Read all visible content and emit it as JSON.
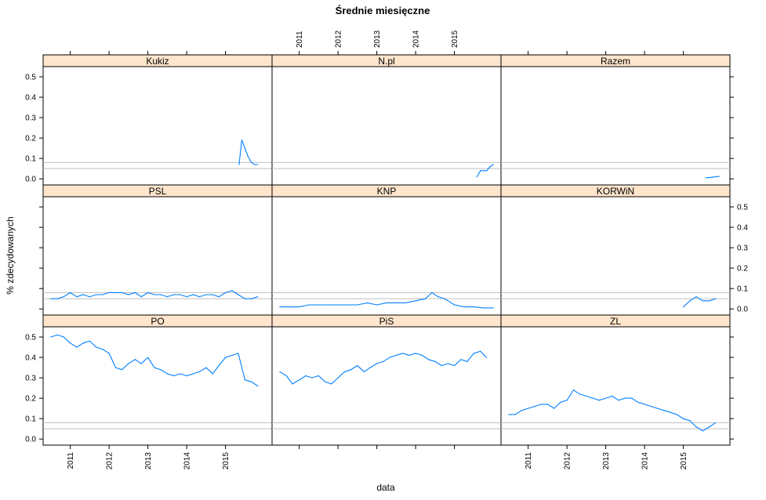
{
  "chart_data": {
    "type": "line",
    "title": "Średnie miesięczne",
    "xlabel": "data",
    "ylabel": "% zdecydowanych",
    "xlim": [
      2010.3,
      2016.2
    ],
    "ylim": [
      -0.03,
      0.55
    ],
    "x_ticks": [
      2011,
      2012,
      2013,
      2014,
      2015
    ],
    "x_tick_labels": [
      "2011",
      "2012",
      "2013",
      "2014",
      "2015"
    ],
    "y_ticks": [
      0.0,
      0.1,
      0.2,
      0.3,
      0.4,
      0.5
    ],
    "y_tick_labels": [
      "0.0",
      "0.1",
      "0.2",
      "0.3",
      "0.4",
      "0.5"
    ],
    "reference_lines": [
      0.05,
      0.08
    ],
    "colors": {
      "line": "#0080ff",
      "strip": "#ffe5cc",
      "reference": "#bfbfbf"
    },
    "panels": [
      {
        "name": "Kukiz",
        "x": [
          2015.35,
          2015.42,
          2015.5,
          2015.58,
          2015.67,
          2015.75,
          2015.83
        ],
        "values": [
          0.07,
          0.19,
          0.15,
          0.11,
          0.08,
          0.07,
          0.07
        ]
      },
      {
        "name": "N.pl",
        "x": [
          2015.58,
          2015.67,
          2015.75,
          2015.83,
          2015.92,
          2016.0
        ],
        "values": [
          0.01,
          0.04,
          0.04,
          0.04,
          0.06,
          0.07
        ]
      },
      {
        "name": "Razem",
        "x": [
          2015.58,
          2015.75,
          2015.92
        ],
        "values": [
          0.005,
          0.008,
          0.012
        ]
      },
      {
        "name": "PSL",
        "x": [
          2010.5,
          2010.67,
          2010.83,
          2011.0,
          2011.17,
          2011.33,
          2011.5,
          2011.67,
          2011.83,
          2012.0,
          2012.17,
          2012.33,
          2012.5,
          2012.67,
          2012.83,
          2013.0,
          2013.17,
          2013.33,
          2013.5,
          2013.67,
          2013.83,
          2014.0,
          2014.17,
          2014.33,
          2014.5,
          2014.67,
          2014.83,
          2015.0,
          2015.17,
          2015.33,
          2015.5,
          2015.67,
          2015.83
        ],
        "values": [
          0.05,
          0.05,
          0.06,
          0.08,
          0.06,
          0.07,
          0.06,
          0.07,
          0.07,
          0.08,
          0.08,
          0.08,
          0.07,
          0.08,
          0.06,
          0.08,
          0.07,
          0.07,
          0.06,
          0.07,
          0.07,
          0.06,
          0.07,
          0.06,
          0.07,
          0.07,
          0.06,
          0.08,
          0.09,
          0.07,
          0.05,
          0.05,
          0.06
        ]
      },
      {
        "name": "KNP",
        "x": [
          2010.5,
          2010.75,
          2011.0,
          2011.25,
          2011.5,
          2011.75,
          2012.0,
          2012.25,
          2012.5,
          2012.75,
          2013.0,
          2013.25,
          2013.5,
          2013.75,
          2014.0,
          2014.25,
          2014.42,
          2014.58,
          2014.75,
          2015.0,
          2015.25,
          2015.5,
          2015.75,
          2016.0
        ],
        "values": [
          0.01,
          0.01,
          0.01,
          0.02,
          0.02,
          0.02,
          0.02,
          0.02,
          0.02,
          0.03,
          0.02,
          0.03,
          0.03,
          0.03,
          0.04,
          0.05,
          0.08,
          0.06,
          0.05,
          0.02,
          0.01,
          0.01,
          0.005,
          0.005
        ]
      },
      {
        "name": "KORWiN",
        "x": [
          2015.0,
          2015.17,
          2015.33,
          2015.5,
          2015.67,
          2015.83
        ],
        "values": [
          0.01,
          0.04,
          0.06,
          0.04,
          0.04,
          0.05
        ]
      },
      {
        "name": "PO",
        "x": [
          2010.5,
          2010.67,
          2010.83,
          2011.0,
          2011.17,
          2011.33,
          2011.5,
          2011.67,
          2011.83,
          2012.0,
          2012.17,
          2012.33,
          2012.5,
          2012.67,
          2012.83,
          2013.0,
          2013.17,
          2013.33,
          2013.5,
          2013.67,
          2013.83,
          2014.0,
          2014.17,
          2014.33,
          2014.5,
          2014.67,
          2014.83,
          2015.0,
          2015.17,
          2015.33,
          2015.5,
          2015.67,
          2015.83
        ],
        "values": [
          0.5,
          0.51,
          0.5,
          0.47,
          0.45,
          0.47,
          0.48,
          0.45,
          0.44,
          0.42,
          0.35,
          0.34,
          0.37,
          0.39,
          0.37,
          0.4,
          0.35,
          0.34,
          0.32,
          0.31,
          0.32,
          0.31,
          0.32,
          0.33,
          0.35,
          0.32,
          0.36,
          0.4,
          0.41,
          0.42,
          0.29,
          0.28,
          0.26
        ]
      },
      {
        "name": "PiS",
        "x": [
          2010.5,
          2010.67,
          2010.83,
          2011.0,
          2011.17,
          2011.33,
          2011.5,
          2011.67,
          2011.83,
          2012.0,
          2012.17,
          2012.33,
          2012.5,
          2012.67,
          2012.83,
          2013.0,
          2013.17,
          2013.33,
          2013.5,
          2013.67,
          2013.83,
          2014.0,
          2014.17,
          2014.33,
          2014.5,
          2014.67,
          2014.83,
          2015.0,
          2015.17,
          2015.33,
          2015.5,
          2015.67,
          2015.83
        ],
        "values": [
          0.33,
          0.31,
          0.27,
          0.29,
          0.31,
          0.3,
          0.31,
          0.28,
          0.27,
          0.3,
          0.33,
          0.34,
          0.36,
          0.33,
          0.35,
          0.37,
          0.38,
          0.4,
          0.41,
          0.42,
          0.41,
          0.42,
          0.41,
          0.39,
          0.38,
          0.36,
          0.37,
          0.36,
          0.39,
          0.38,
          0.42,
          0.43,
          0.4
        ]
      },
      {
        "name": "ZL",
        "x": [
          2010.5,
          2010.67,
          2010.83,
          2011.0,
          2011.17,
          2011.33,
          2011.5,
          2011.67,
          2011.83,
          2012.0,
          2012.17,
          2012.33,
          2012.5,
          2012.67,
          2012.83,
          2013.0,
          2013.17,
          2013.33,
          2013.5,
          2013.67,
          2013.83,
          2014.0,
          2014.17,
          2014.33,
          2014.5,
          2014.67,
          2014.83,
          2015.0,
          2015.17,
          2015.33,
          2015.5,
          2015.67,
          2015.83
        ],
        "values": [
          0.12,
          0.12,
          0.14,
          0.15,
          0.16,
          0.17,
          0.17,
          0.15,
          0.18,
          0.19,
          0.24,
          0.22,
          0.21,
          0.2,
          0.19,
          0.2,
          0.21,
          0.19,
          0.2,
          0.2,
          0.18,
          0.17,
          0.16,
          0.15,
          0.14,
          0.13,
          0.12,
          0.1,
          0.09,
          0.06,
          0.04,
          0.06,
          0.08
        ]
      }
    ]
  }
}
